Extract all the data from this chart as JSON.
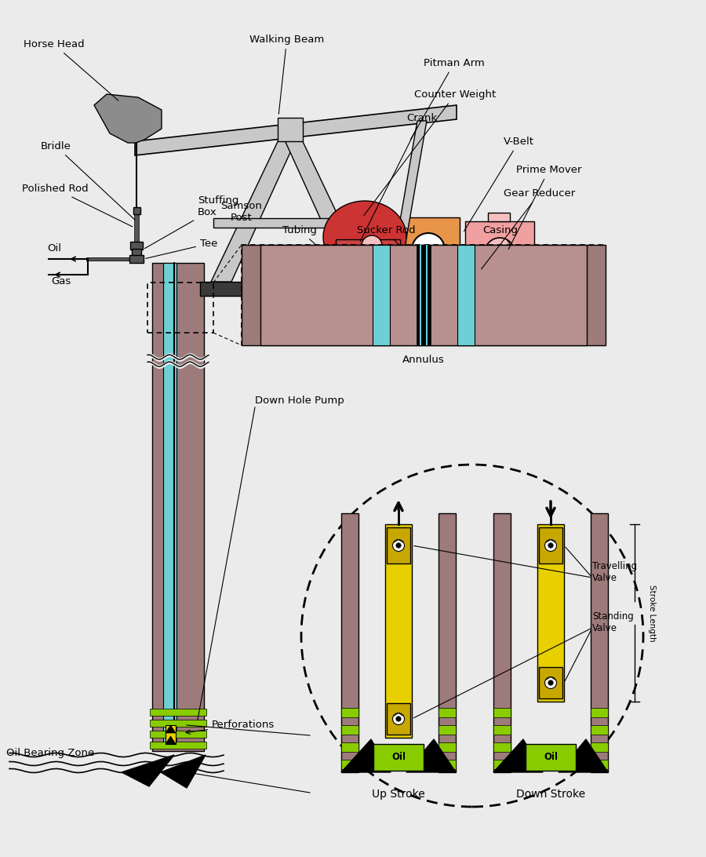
{
  "colors": {
    "bg_color": "#ebebeb",
    "gray_steel": "#8c8c8c",
    "gray_light": "#c8c8c8",
    "gray_dark": "#555555",
    "gray_platform": "#3a3a3a",
    "orange_body": "#e8954a",
    "red_counterweight": "#cc3333",
    "pink_prime_mover": "#f0a0a0",
    "pink_light": "#f5c0c0",
    "brown_casing": "#9e7b7b",
    "cyan_tubing": "#6ecfd4",
    "green_perforations": "#88cc00",
    "yellow_pump": "#e8d000",
    "dark_yellow": "#c8a800",
    "black": "#000000",
    "white": "#ffffff"
  },
  "labels": {
    "horse_head": "Horse Head",
    "walking_beam": "Walking Beam",
    "pitman_arm": "Pitman Arm",
    "counter_weight": "Counter Weight",
    "crank": "Crank",
    "v_belt": "V-Belt",
    "prime_mover": "Prime Mover",
    "gear_reducer": "Gear Reducer",
    "bridle": "Bridle",
    "polished_rod": "Polished Rod",
    "stuffing_box": "Stuffing\nBox",
    "tee": "Tee",
    "oil": "Oil",
    "gas": "Gas",
    "samson_post": "Samson\nPost",
    "tubing": "Tubing",
    "sucker_rod": "Sucker Rod",
    "casing": "Casing",
    "annulus": "Annulus",
    "down_hole_pump": "Down Hole Pump",
    "perforations": "Perforations",
    "oil_bearing_zone": "Oil Bearing Zone",
    "travelling_valve": "Travelling\nValve",
    "standing_valve": "Standing\nValve",
    "up_stroke": "Up Stroke",
    "down_stroke": "Down Stroke",
    "stroke_length": "Stroke Length",
    "oil_up": "Oil",
    "oil_down": "Oil"
  }
}
